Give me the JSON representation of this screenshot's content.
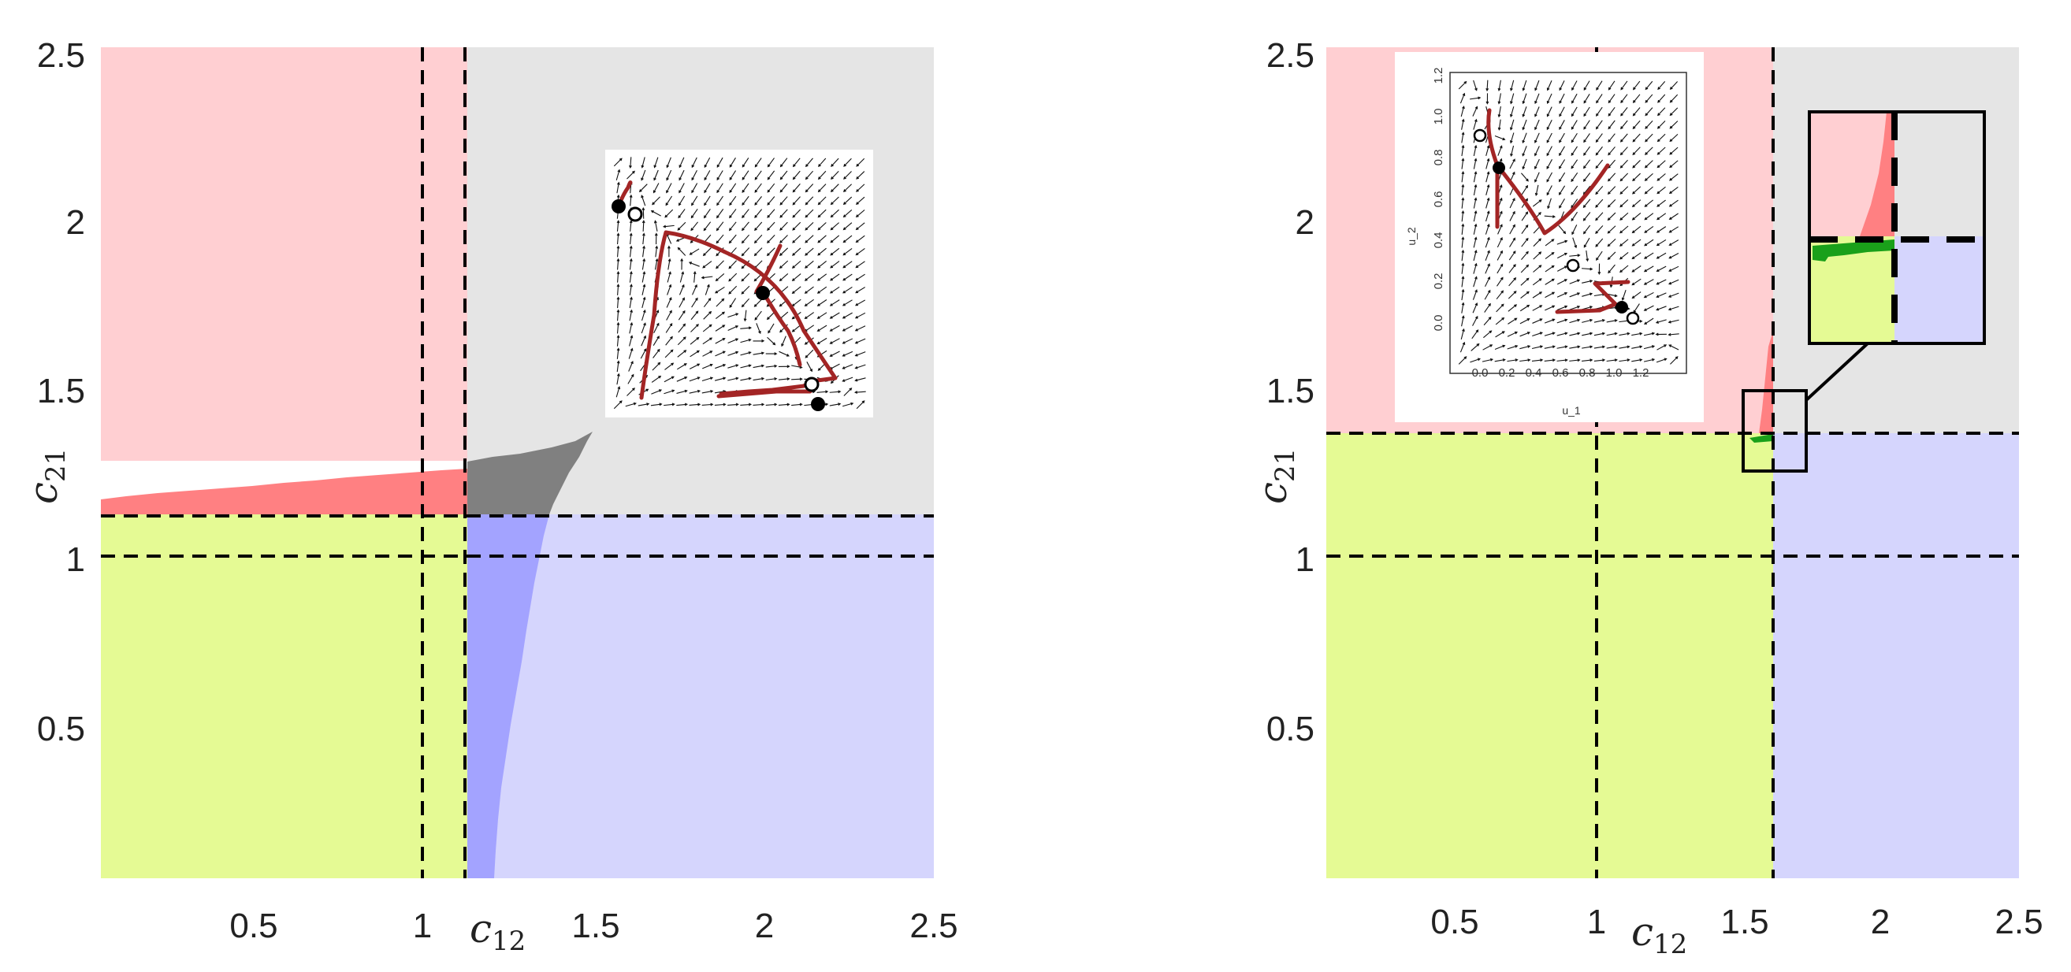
{
  "chart_data": [
    {
      "type": "heatmap",
      "xlabel": "c12",
      "ylabel": "c21",
      "xlim": [
        0.05,
        2.5
      ],
      "ylim": [
        0.05,
        2.5
      ],
      "xticks": [
        "0.5",
        "1",
        "1.5",
        "2",
        "2.5"
      ],
      "yticks": [
        "0.5",
        "1",
        "1.5",
        "2",
        "2.5"
      ],
      "xtick_values": [
        0.5,
        1,
        1.5,
        2,
        2.5
      ],
      "ytick_values": [
        0.5,
        1,
        1.5,
        2,
        2.5
      ],
      "dashed_vertical_lines": [
        1.0,
        1.12
      ],
      "dashed_horizontal_lines": [
        1.0,
        1.12
      ],
      "region_colors": {
        "pink": "#ffcfd2",
        "red": "#ff8082",
        "gray": "#e5e5e5",
        "dark_gray": "#808080",
        "yellow_green": "#e5fa94",
        "blue": "#a3a3ff",
        "light_blue": "#d5d5fd"
      },
      "grid": false,
      "inset": {
        "type": "vector-field",
        "trajectory_color": "#a32525"
      }
    },
    {
      "type": "heatmap",
      "xlabel": "c12",
      "ylabel": "c21",
      "xlim": [
        0.05,
        2.5
      ],
      "ylim": [
        0.05,
        2.5
      ],
      "xticks": [
        "0.5",
        "1",
        "1.5",
        "2",
        "2.5"
      ],
      "yticks": [
        "0.5",
        "1",
        "1.5",
        "2",
        "2.5"
      ],
      "xtick_values": [
        0.5,
        1,
        1.5,
        2,
        2.5
      ],
      "ytick_values": [
        0.5,
        1,
        1.5,
        2,
        2.5
      ],
      "dashed_vertical_lines": [
        1.0,
        1.62
      ],
      "dashed_horizontal_lines": [
        1.0,
        1.37
      ],
      "region_colors": {
        "pink": "#ffcfd2",
        "red": "#ff8082",
        "gray": "#e5e5e5",
        "green": "#1aa01a",
        "yellow_green": "#e5fa94",
        "light_blue": "#d5d5fd"
      },
      "grid": false,
      "inset": {
        "type": "vector-field",
        "xlabel": "u_1",
        "ylabel": "u_2",
        "xticks": [
          "0.0",
          "0.2",
          "0.4",
          "0.6",
          "0.8",
          "1.0",
          "1.2"
        ],
        "yticks": [
          "0.0",
          "0.2",
          "0.4",
          "0.6",
          "0.8",
          "1.0",
          "1.2"
        ],
        "xtick_values": [
          0,
          0.2,
          0.4,
          0.6,
          0.8,
          1.0,
          1.2
        ],
        "ytick_values": [
          0,
          0.2,
          0.4,
          0.6,
          0.8,
          1.0,
          1.2
        ],
        "trajectory_color": "#a32525"
      },
      "zoom_box": {
        "c12": [
          1.45,
          1.64
        ],
        "c21": [
          1.27,
          1.51
        ]
      }
    }
  ]
}
